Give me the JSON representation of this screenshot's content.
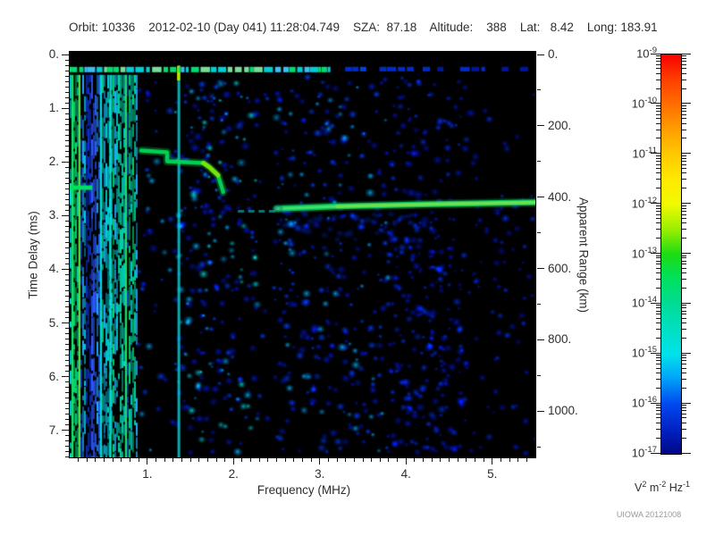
{
  "header": {
    "title": "Orbit: 10336    2012-02-10 (Day 041) 11:28:04.749    SZA:  87.18    Altitude:    388    Lat:   8.42    Long: 183.91"
  },
  "footer": {
    "stamp": "UIOWA 20121008"
  },
  "chart_data": {
    "type": "heatmap",
    "subtype": "radar-sounder-ionogram",
    "xlabel": "Frequency (MHz)",
    "ylabel": "Time Delay (ms)",
    "y2label": "Apparent Range (km)",
    "xlim": [
      0.1,
      5.5
    ],
    "ylim_ms": [
      0.0,
      7.5
    ],
    "y2_km_per_ms": 150.5,
    "x_major_ticks": [
      1,
      2,
      3,
      4,
      5
    ],
    "x_tick_labels": [
      "1.",
      "2.",
      "3.",
      "4.",
      "5."
    ],
    "x_minor_step_mhz": 0.1,
    "y_major_ticks": [
      0,
      1,
      2,
      3,
      4,
      5,
      6,
      7
    ],
    "y_tick_labels": [
      "0.",
      "1.",
      "2.",
      "3.",
      "4.",
      "5.",
      "6.",
      "7."
    ],
    "y_minor_step_ms": 0.1,
    "y2_major_ticks": [
      0,
      200,
      400,
      600,
      800,
      1000
    ],
    "y2_tick_labels": [
      "0.",
      "200.",
      "400.",
      "600.",
      "800.",
      "1000."
    ],
    "y2_minor_step_km": 100,
    "grid": false,
    "colorbar": {
      "scale": "log",
      "top_exponent": -9,
      "bottom_exponent": -17,
      "tick_exponents": [
        -9,
        -10,
        -11,
        -12,
        -13,
        -14,
        -15,
        -16,
        -17
      ],
      "unit_parts": [
        {
          "base": "V",
          "exp": "2"
        },
        {
          "base": "m",
          "exp": "-2"
        },
        {
          "base": "Hz",
          "exp": "-1"
        }
      ],
      "gradient": [
        {
          "pos": 0,
          "color": "#f80000"
        },
        {
          "pos": 6,
          "color": "#ff3c00"
        },
        {
          "pos": 12.5,
          "color": "#ff6e00"
        },
        {
          "pos": 20,
          "color": "#ffa600"
        },
        {
          "pos": 25,
          "color": "#ffc800"
        },
        {
          "pos": 31,
          "color": "#ffe800"
        },
        {
          "pos": 37.5,
          "color": "#f2fa00"
        },
        {
          "pos": 44,
          "color": "#96ee00"
        },
        {
          "pos": 50,
          "color": "#1cdc14"
        },
        {
          "pos": 56,
          "color": "#00e05c"
        },
        {
          "pos": 62.5,
          "color": "#00dc96"
        },
        {
          "pos": 69,
          "color": "#00e0c4"
        },
        {
          "pos": 75,
          "color": "#00e2ea"
        },
        {
          "pos": 81,
          "color": "#00a4f8"
        },
        {
          "pos": 87.5,
          "color": "#0048f0"
        },
        {
          "pos": 94,
          "color": "#0022c2"
        },
        {
          "pos": 100,
          "color": "#000688"
        }
      ]
    },
    "features": {
      "top_blank_band_ms": [
        0.0,
        0.2
      ],
      "transmit_pulse_line": {
        "ms_center": 0.28,
        "thickness_ms": 0.1,
        "bright_until_mhz": 3.1,
        "bright_colors": [
          "#00e878",
          "#00d8e0",
          "#40c8ff",
          "#7fe8a0"
        ],
        "dim_colors": [
          "#0030e0",
          "#0018b0",
          "#0048ff"
        ]
      },
      "plasma_oscillation_band": {
        "mhz": [
          0.1,
          0.87
        ],
        "ms": [
          0.38,
          7.5
        ],
        "palette": [
          "#00e070",
          "#00d8a8",
          "#00cfe0",
          "#22aaff",
          "#2b59ff",
          "#0d2fd0"
        ],
        "bright_stripes": [
          {
            "mhz": 0.12,
            "color": "#18e868"
          },
          {
            "mhz": 0.2,
            "color": "#55e83a"
          },
          {
            "mhz": 0.45,
            "color": "#00d8e8"
          },
          {
            "mhz": 0.56,
            "color": "#00e4c8"
          },
          {
            "mhz": 0.74,
            "color": "#20e060"
          }
        ]
      },
      "resonance_vline": {
        "mhz": 1.35,
        "color": "#00ccd4",
        "top_bright_color": "#b8e800"
      },
      "ionosphere_echo_trace": {
        "color": "#00d855",
        "bright_color": "#8ee800",
        "points_mhz_ms": [
          [
            0.93,
            1.79
          ],
          [
            1.23,
            1.82
          ],
          [
            1.23,
            1.99
          ],
          [
            1.65,
            2.02
          ],
          [
            1.72,
            2.1
          ],
          [
            1.82,
            2.25
          ],
          [
            1.88,
            2.56
          ]
        ]
      },
      "ground_reflection_trace": {
        "color": "#00d05c",
        "core_color": "#4ae070",
        "bright_color": "#7ce24a",
        "points_mhz_ms": [
          [
            2.5,
            2.87
          ],
          [
            3.2,
            2.83
          ],
          [
            4.2,
            2.79
          ],
          [
            5.5,
            2.755
          ]
        ],
        "tip_color": "#40e0c0",
        "undercloud_mhz": [
          2.55,
          4.1
        ],
        "undercloud_ms": [
          2.95,
          3.45
        ]
      },
      "pre_echo_dashes": {
        "mhz": [
          2.05,
          2.48
        ],
        "ms": 2.92,
        "color": "#00b8c8"
      },
      "local_plasma_dash": {
        "mhz": [
          0.1,
          0.36
        ],
        "ms": 2.48,
        "color": "#00e060"
      },
      "noise_regions": [
        {
          "mhz": [
            0.87,
            1.31
          ],
          "density": 2.2,
          "palette": [
            "#0018c8",
            "#0040ff",
            "#00a8e8"
          ]
        },
        {
          "mhz": [
            1.31,
            2.28
          ],
          "density": 7.0,
          "palette": [
            "#0018c8",
            "#0040ff",
            "#00a8e8",
            "#00d8d0"
          ]
        },
        {
          "mhz": [
            2.28,
            2.48
          ],
          "density": 1.0,
          "palette": [
            "#0018c8",
            "#0040ff"
          ]
        },
        {
          "mhz": [
            2.48,
            3.8
          ],
          "density": 6.0,
          "palette": [
            "#0018c8",
            "#0040ff",
            "#00a8e8"
          ]
        },
        {
          "mhz": [
            3.8,
            4.66
          ],
          "density": 9.5,
          "palette": [
            "#0014b4",
            "#0030e0"
          ]
        },
        {
          "mhz": [
            4.66,
            5.5
          ],
          "density": 2.8,
          "palette": [
            "#0014b4",
            "#0030e0"
          ]
        }
      ]
    }
  }
}
